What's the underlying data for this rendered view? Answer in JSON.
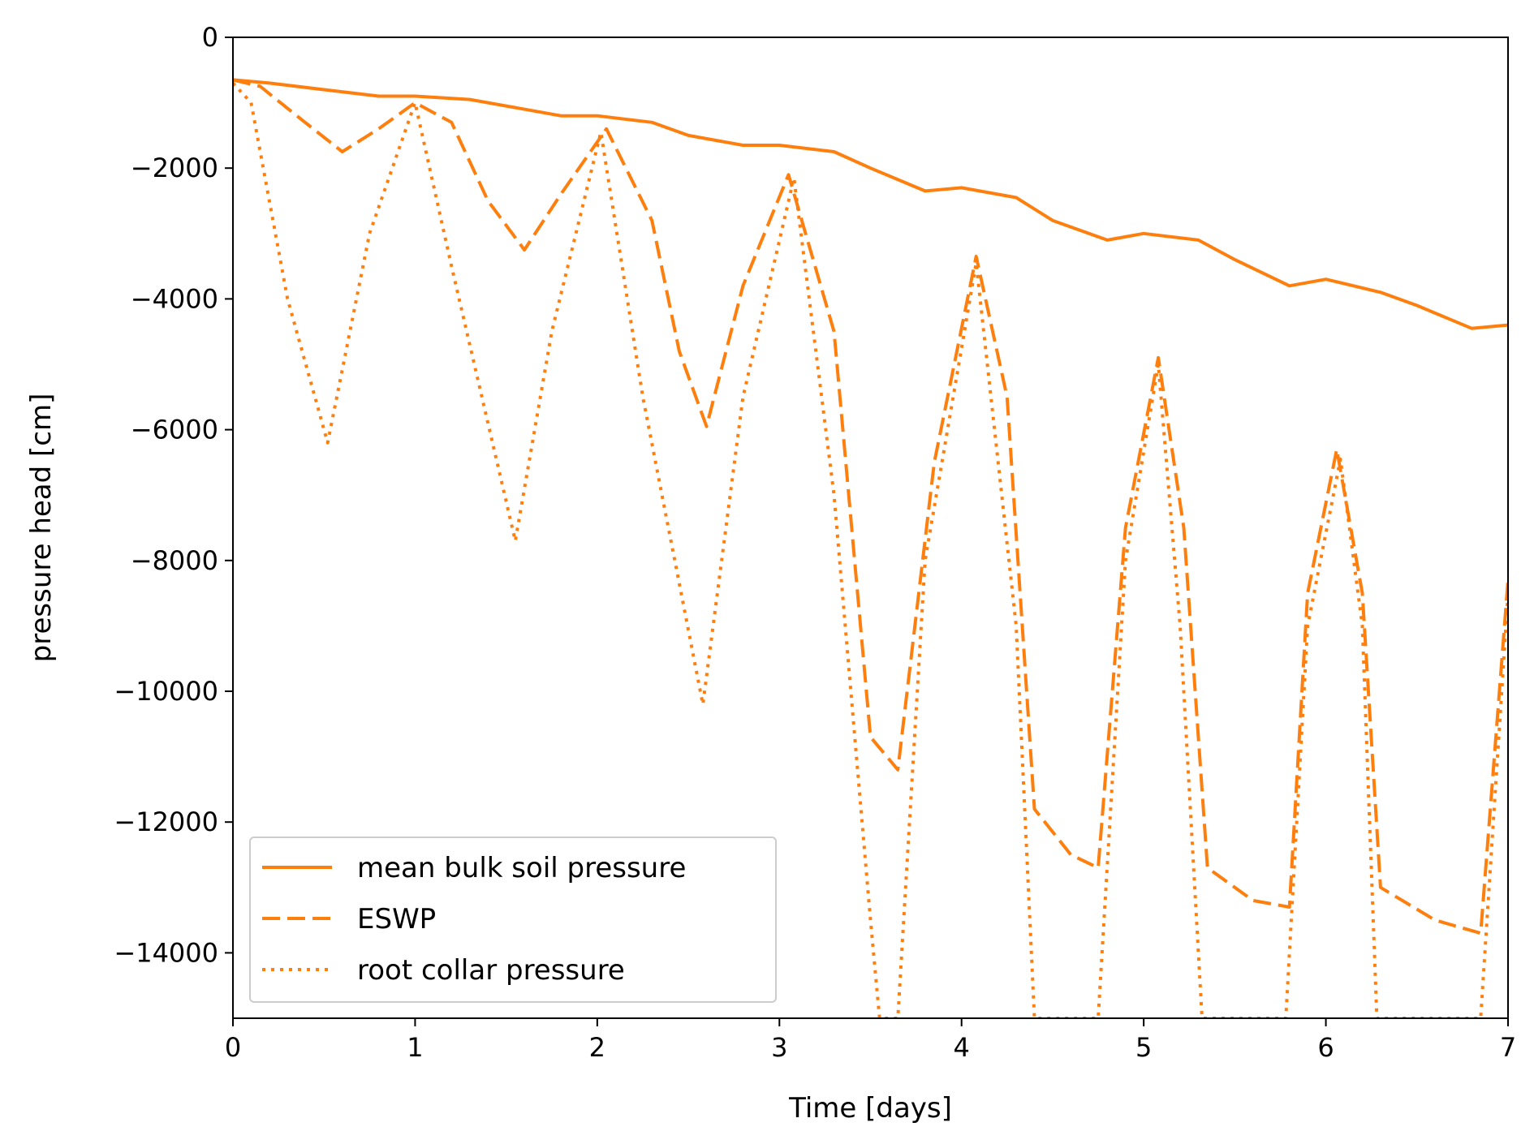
{
  "chart_data": {
    "type": "line",
    "title": "",
    "xlabel": "Time [days]",
    "ylabel": "pressure head [cm]",
    "xlim": [
      0,
      7
    ],
    "ylim": [
      -15000,
      0
    ],
    "xticks": [
      0,
      1,
      2,
      3,
      4,
      5,
      6,
      7
    ],
    "yticks": [
      0,
      -2000,
      -4000,
      -6000,
      -8000,
      -10000,
      -12000,
      -14000
    ],
    "grid": false,
    "legend_position": "lower-left",
    "color": "#ff7f0e",
    "series": [
      {
        "name": "mean bulk soil pressure",
        "linestyle": "solid",
        "x": [
          0,
          0.2,
          0.5,
          0.8,
          1.0,
          1.3,
          1.5,
          1.8,
          2.0,
          2.3,
          2.5,
          2.8,
          3.0,
          3.3,
          3.5,
          3.8,
          4.0,
          4.3,
          4.5,
          4.8,
          5.0,
          5.3,
          5.5,
          5.8,
          6.0,
          6.3,
          6.5,
          6.8,
          7.0
        ],
        "y": [
          -650,
          -700,
          -800,
          -900,
          -900,
          -950,
          -1050,
          -1200,
          -1200,
          -1300,
          -1500,
          -1650,
          -1650,
          -1750,
          -2000,
          -2350,
          -2300,
          -2450,
          -2800,
          -3100,
          -3000,
          -3100,
          -3400,
          -3800,
          -3700,
          -3900,
          -4100,
          -4450,
          -4400
        ]
      },
      {
        "name": "ESWP",
        "linestyle": "dashed",
        "x": [
          0,
          0.15,
          0.35,
          0.6,
          0.8,
          1.0,
          1.2,
          1.4,
          1.6,
          1.8,
          2.05,
          2.3,
          2.45,
          2.6,
          2.8,
          3.05,
          3.3,
          3.5,
          3.65,
          3.85,
          4.08,
          4.25,
          4.4,
          4.6,
          4.75,
          4.9,
          5.08,
          5.22,
          5.35,
          5.6,
          5.8,
          5.9,
          6.06,
          6.2,
          6.3,
          6.6,
          6.85,
          7.0
        ],
        "y": [
          -650,
          -750,
          -1200,
          -1750,
          -1400,
          -1000,
          -1300,
          -2500,
          -3250,
          -2400,
          -1400,
          -2800,
          -4800,
          -5950,
          -3800,
          -2100,
          -4500,
          -10700,
          -11200,
          -6500,
          -3350,
          -5500,
          -11800,
          -12500,
          -12700,
          -7500,
          -4900,
          -7500,
          -12700,
          -13200,
          -13300,
          -8500,
          -6300,
          -8500,
          -13000,
          -13500,
          -13700,
          -8300
        ]
      },
      {
        "name": "root collar pressure",
        "linestyle": "dotted",
        "x": [
          0,
          0.1,
          0.3,
          0.52,
          0.75,
          1.0,
          1.2,
          1.55,
          1.75,
          2.02,
          2.25,
          2.58,
          2.8,
          3.08,
          3.3,
          3.5,
          3.55,
          3.65,
          3.8,
          4.08,
          4.3,
          4.4,
          4.75,
          4.9,
          5.08,
          5.2,
          5.32,
          5.78,
          5.9,
          6.08,
          6.2,
          6.28,
          6.85,
          7.0
        ],
        "y": [
          -700,
          -1000,
          -4000,
          -6200,
          -3000,
          -1000,
          -3500,
          -7700,
          -4500,
          -1450,
          -5500,
          -10200,
          -5500,
          -2150,
          -7000,
          -13500,
          -15000,
          -15000,
          -8000,
          -3450,
          -9000,
          -15000,
          -15000,
          -8000,
          -5000,
          -9000,
          -15000,
          -15000,
          -9000,
          -6450,
          -9000,
          -15000,
          -15000,
          -8500
        ]
      }
    ]
  }
}
